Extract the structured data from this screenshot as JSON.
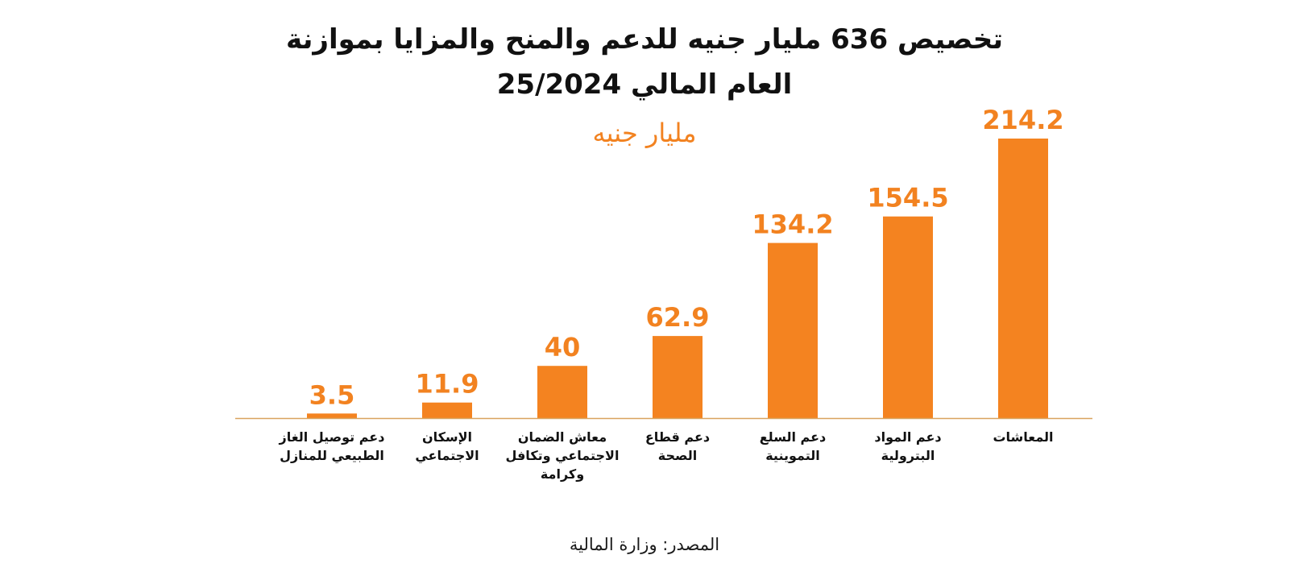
{
  "title_lines": [
    "تخصيص 636 مليار جنيه للدعم والمنح والمزايا بموازنة",
    "العام المالي 25/2024"
  ],
  "unit_label": "مليار جنيه",
  "source": "المصدر: وزارة المالية",
  "colors": {
    "bar": "#F48320",
    "value_text": "#F28220",
    "axis_line": "#D9A35E",
    "text": "#111111"
  },
  "chart_data": {
    "type": "bar",
    "orientation": "vertical",
    "direction": "rtl",
    "categories": [
      [
        "المعاشات"
      ],
      [
        "دعم المواد",
        "البترولية"
      ],
      [
        "دعم السلع",
        "التموينية"
      ],
      [
        "دعم قطاع",
        "الصحة"
      ],
      [
        "معاش الضمان",
        "الاجتماعي وتكافل",
        "وكرامة"
      ],
      [
        "الإسكان",
        "الاجتماعي"
      ],
      [
        "دعم توصيل الغاز",
        "الطبيعي للمنازل"
      ]
    ],
    "values": [
      214.2,
      154.5,
      134.2,
      62.9,
      40,
      11.9,
      3.5
    ],
    "value_labels": [
      "214.2",
      "154.5",
      "134.2",
      "62.9",
      "40",
      "11.9",
      "3.5"
    ],
    "ylim": [
      0,
      214.2
    ],
    "grid": false,
    "axes_visible": false,
    "title": "تخصيص 636 مليار جنيه للدعم والمنح والمزايا بموازنة العام المالي 25/2024",
    "ylabel": "مليار جنيه"
  }
}
